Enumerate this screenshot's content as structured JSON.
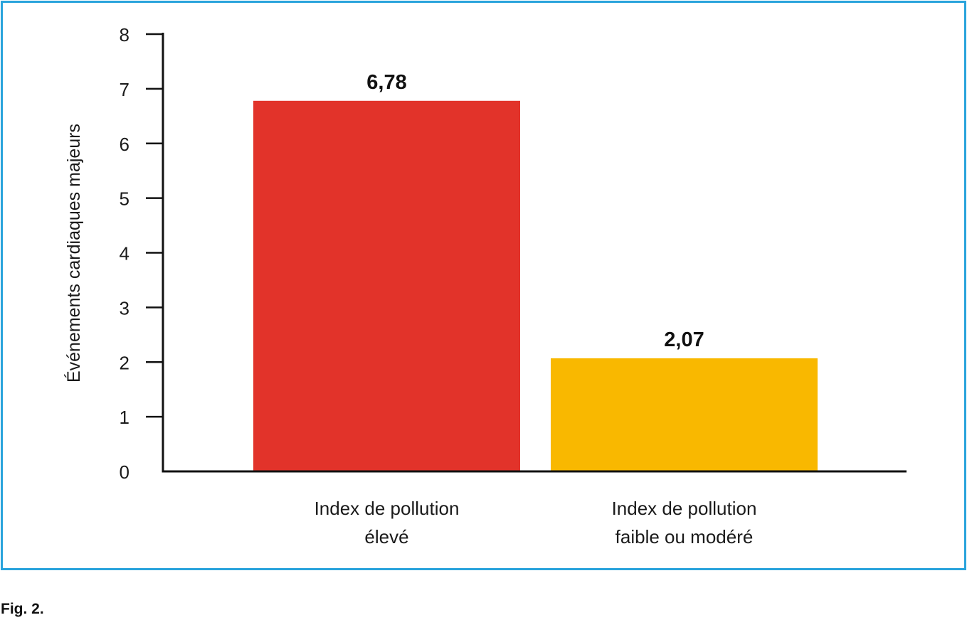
{
  "caption": "Fig. 2.",
  "frame_color": "#29A3DC",
  "chart_data": {
    "type": "bar",
    "categories": [
      [
        "Index de pollution",
        "élevé"
      ],
      [
        "Index de pollution",
        "faible ou modéré"
      ]
    ],
    "values": [
      6.78,
      2.07
    ],
    "value_labels": [
      "6,78",
      "2,07"
    ],
    "colors": [
      "#E2332A",
      "#F9B800"
    ],
    "title": "",
    "xlabel": "",
    "ylabel": "Événements cardiaques majeurs",
    "ylim": [
      0,
      8
    ],
    "yticks": [
      0,
      1,
      2,
      3,
      4,
      5,
      6,
      7,
      8
    ],
    "grid": false,
    "legend": "none"
  }
}
